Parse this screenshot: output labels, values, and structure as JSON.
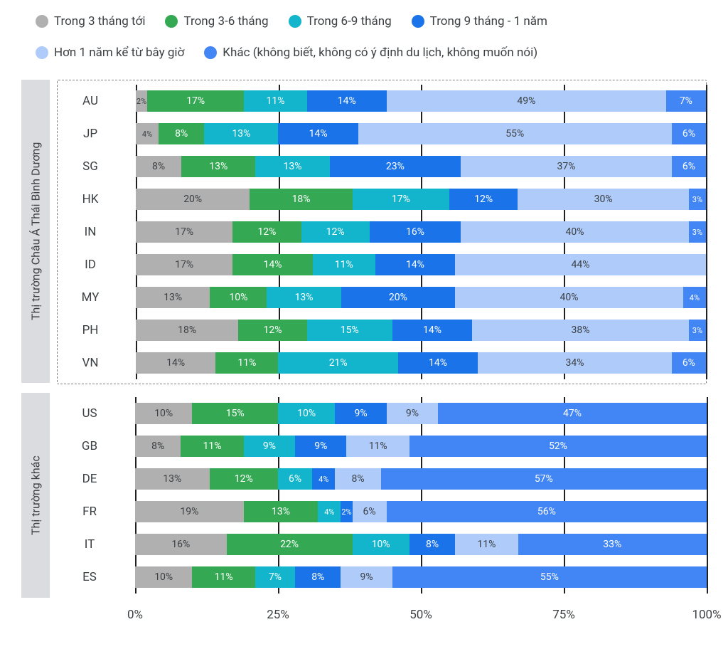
{
  "colors": {
    "s1": "#b0b0b0",
    "s2": "#34a853",
    "s3": "#12b5cb",
    "s4": "#1a73e8",
    "s5": "#aecbfa",
    "s6": "#4285f4",
    "grid": "#202124",
    "group_bg": "#dadce0",
    "text_on_light": "#3c4043"
  },
  "legend": [
    {
      "key": "s1",
      "label": "Trong 3 tháng tới"
    },
    {
      "key": "s2",
      "label": "Trong 3-6 tháng"
    },
    {
      "key": "s3",
      "label": "Trong 6-9 tháng"
    },
    {
      "key": "s4",
      "label": "Trong 9 tháng - 1 năm"
    },
    {
      "key": "s5",
      "label": "Hơn 1 năm kể từ bây giờ"
    },
    {
      "key": "s6",
      "label": "Khác (không biết, không có ý định du lịch, không muốn nói)"
    }
  ],
  "axis": {
    "ticks": [
      0,
      25,
      50,
      75,
      100
    ],
    "suffix": "%"
  },
  "groups": [
    {
      "name": "Thị trường Châu Á Thái Bình Dương",
      "dotted": true,
      "rows": [
        {
          "code": "AU",
          "seg": [
            {
              "k": "s1",
              "v": 2,
              "show": true
            },
            {
              "k": "s2",
              "v": 17,
              "show": true
            },
            {
              "k": "s3",
              "v": 11,
              "show": true
            },
            {
              "k": "s4",
              "v": 14,
              "show": true
            },
            {
              "k": "s5",
              "v": 49,
              "show": true
            },
            {
              "k": "s6",
              "v": 7,
              "show": true
            }
          ]
        },
        {
          "code": "JP",
          "seg": [
            {
              "k": "s1",
              "v": 4,
              "show": true
            },
            {
              "k": "s2",
              "v": 8,
              "show": true
            },
            {
              "k": "s3",
              "v": 13,
              "show": true
            },
            {
              "k": "s4",
              "v": 14,
              "show": true
            },
            {
              "k": "s5",
              "v": 55,
              "show": true
            },
            {
              "k": "s6",
              "v": 6,
              "show": true
            }
          ]
        },
        {
          "code": "SG",
          "seg": [
            {
              "k": "s1",
              "v": 8,
              "show": true
            },
            {
              "k": "s2",
              "v": 13,
              "show": true
            },
            {
              "k": "s3",
              "v": 13,
              "show": true
            },
            {
              "k": "s4",
              "v": 23,
              "show": true
            },
            {
              "k": "s5",
              "v": 37,
              "show": true
            },
            {
              "k": "s6",
              "v": 6,
              "show": true
            }
          ]
        },
        {
          "code": "HK",
          "seg": [
            {
              "k": "s1",
              "v": 20,
              "show": true
            },
            {
              "k": "s2",
              "v": 18,
              "show": true
            },
            {
              "k": "s3",
              "v": 17,
              "show": true
            },
            {
              "k": "s4",
              "v": 12,
              "show": true
            },
            {
              "k": "s5",
              "v": 30,
              "show": true
            },
            {
              "k": "s6",
              "v": 3,
              "show": true
            }
          ]
        },
        {
          "code": "IN",
          "seg": [
            {
              "k": "s1",
              "v": 17,
              "show": true
            },
            {
              "k": "s2",
              "v": 12,
              "show": true
            },
            {
              "k": "s3",
              "v": 12,
              "show": true
            },
            {
              "k": "s4",
              "v": 16,
              "show": true
            },
            {
              "k": "s5",
              "v": 40,
              "show": true
            },
            {
              "k": "s6",
              "v": 3,
              "show": true
            }
          ]
        },
        {
          "code": "ID",
          "seg": [
            {
              "k": "s1",
              "v": 17,
              "show": true
            },
            {
              "k": "s2",
              "v": 14,
              "show": true
            },
            {
              "k": "s3",
              "v": 11,
              "show": true
            },
            {
              "k": "s4",
              "v": 14,
              "show": true
            },
            {
              "k": "s5",
              "v": 44,
              "show": true
            },
            {
              "k": "s6",
              "v": 0,
              "show": false
            }
          ]
        },
        {
          "code": "MY",
          "seg": [
            {
              "k": "s1",
              "v": 13,
              "show": true
            },
            {
              "k": "s2",
              "v": 10,
              "show": true
            },
            {
              "k": "s3",
              "v": 13,
              "show": true
            },
            {
              "k": "s4",
              "v": 20,
              "show": true
            },
            {
              "k": "s5",
              "v": 40,
              "show": true
            },
            {
              "k": "s6",
              "v": 4,
              "show": true
            }
          ]
        },
        {
          "code": "PH",
          "seg": [
            {
              "k": "s1",
              "v": 18,
              "show": true
            },
            {
              "k": "s2",
              "v": 12,
              "show": true
            },
            {
              "k": "s3",
              "v": 15,
              "show": true
            },
            {
              "k": "s4",
              "v": 14,
              "show": true
            },
            {
              "k": "s5",
              "v": 38,
              "show": true
            },
            {
              "k": "s6",
              "v": 3,
              "show": true
            }
          ]
        },
        {
          "code": "VN",
          "seg": [
            {
              "k": "s1",
              "v": 14,
              "show": true
            },
            {
              "k": "s2",
              "v": 11,
              "show": true
            },
            {
              "k": "s3",
              "v": 21,
              "show": true
            },
            {
              "k": "s4",
              "v": 14,
              "show": true
            },
            {
              "k": "s5",
              "v": 34,
              "show": true
            },
            {
              "k": "s6",
              "v": 6,
              "show": true
            }
          ]
        }
      ]
    },
    {
      "name": "Thị trường khác",
      "dotted": false,
      "rows": [
        {
          "code": "US",
          "seg": [
            {
              "k": "s1",
              "v": 10,
              "show": true
            },
            {
              "k": "s2",
              "v": 15,
              "show": true
            },
            {
              "k": "s3",
              "v": 10,
              "show": true
            },
            {
              "k": "s4",
              "v": 9,
              "show": true
            },
            {
              "k": "s5",
              "v": 9,
              "show": true
            },
            {
              "k": "s6",
              "v": 47,
              "show": true
            }
          ]
        },
        {
          "code": "GB",
          "seg": [
            {
              "k": "s1",
              "v": 8,
              "show": true
            },
            {
              "k": "s2",
              "v": 11,
              "show": true
            },
            {
              "k": "s3",
              "v": 9,
              "show": true
            },
            {
              "k": "s4",
              "v": 9,
              "show": true
            },
            {
              "k": "s5",
              "v": 11,
              "show": true
            },
            {
              "k": "s6",
              "v": 52,
              "show": true
            }
          ]
        },
        {
          "code": "DE",
          "seg": [
            {
              "k": "s1",
              "v": 13,
              "show": true
            },
            {
              "k": "s2",
              "v": 12,
              "show": true
            },
            {
              "k": "s3",
              "v": 6,
              "show": true
            },
            {
              "k": "s4",
              "v": 4,
              "show": true
            },
            {
              "k": "s5",
              "v": 8,
              "show": true
            },
            {
              "k": "s6",
              "v": 57,
              "show": true
            }
          ]
        },
        {
          "code": "FR",
          "seg": [
            {
              "k": "s1",
              "v": 19,
              "show": true
            },
            {
              "k": "s2",
              "v": 13,
              "show": true
            },
            {
              "k": "s3",
              "v": 4,
              "show": true
            },
            {
              "k": "s4",
              "v": 2,
              "show": true
            },
            {
              "k": "s5",
              "v": 6,
              "show": true
            },
            {
              "k": "s6",
              "v": 56,
              "show": true
            }
          ]
        },
        {
          "code": "IT",
          "seg": [
            {
              "k": "s1",
              "v": 16,
              "show": true
            },
            {
              "k": "s2",
              "v": 22,
              "show": true
            },
            {
              "k": "s3",
              "v": 10,
              "show": true
            },
            {
              "k": "s4",
              "v": 8,
              "show": true
            },
            {
              "k": "s5",
              "v": 11,
              "show": true
            },
            {
              "k": "s6",
              "v": 33,
              "show": true
            }
          ]
        },
        {
          "code": "ES",
          "seg": [
            {
              "k": "s1",
              "v": 10,
              "show": true
            },
            {
              "k": "s2",
              "v": 11,
              "show": true
            },
            {
              "k": "s3",
              "v": 7,
              "show": true
            },
            {
              "k": "s4",
              "v": 8,
              "show": true
            },
            {
              "k": "s5",
              "v": 9,
              "show": true
            },
            {
              "k": "s6",
              "v": 55,
              "show": true
            }
          ]
        }
      ]
    }
  ]
}
